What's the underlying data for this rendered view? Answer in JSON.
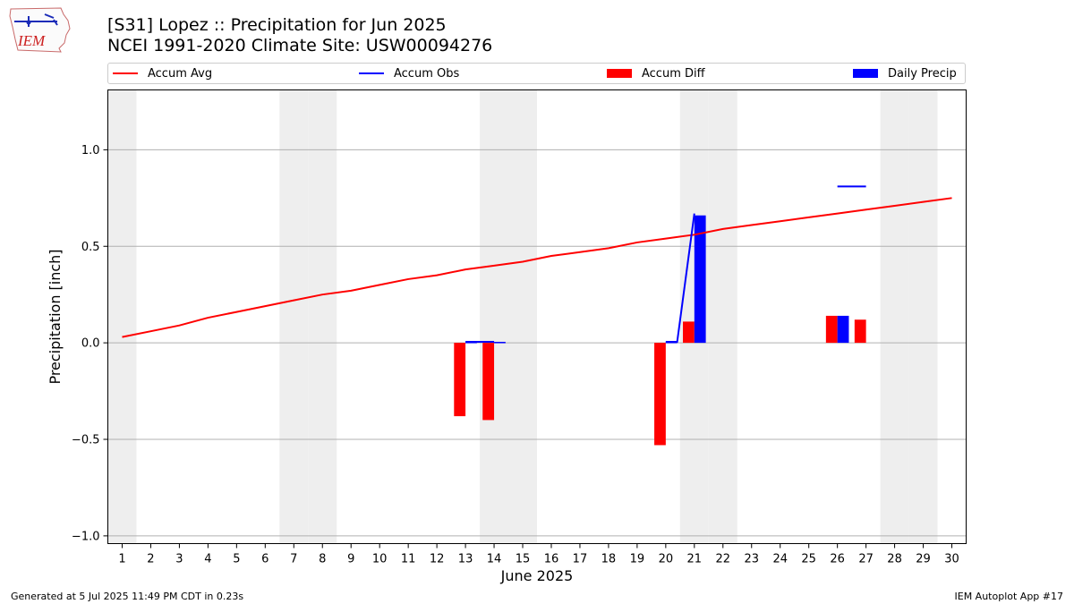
{
  "logo_text": "IEM",
  "title_line1": "[S31] Lopez :: Precipitation for Jun 2025",
  "title_line2": "NCEI 1991-2020 Climate Site: USW00094276",
  "legend": {
    "accum_avg": "Accum Avg",
    "accum_obs": "Accum Obs",
    "accum_diff": "Accum Diff",
    "daily_precip": "Daily Precip"
  },
  "colors": {
    "accum_avg": "#ff0000",
    "accum_obs": "#0000ff",
    "accum_diff": "#ff0000",
    "daily_precip": "#0000ff",
    "weekend_shade": "#eeeeee",
    "gridline": "#b0b0b0"
  },
  "footer_left": "Generated at 5 Jul 2025 11:49 PM CDT in 0.23s",
  "footer_right": "IEM Autoplot App #17",
  "chart_data": {
    "type": "bar",
    "xlabel": "June 2025",
    "ylabel": "Precipitation [inch]",
    "xlim": [
      0.5,
      30.5
    ],
    "ylim": [
      -1.04,
      1.31
    ],
    "yticks": [
      -1.0,
      -0.5,
      0.0,
      0.5,
      1.0
    ],
    "ytick_labels": [
      "−1.0",
      "−0.5",
      "0.0",
      "0.5",
      "1.0"
    ],
    "x": [
      1,
      2,
      3,
      4,
      5,
      6,
      7,
      8,
      9,
      10,
      11,
      12,
      13,
      14,
      15,
      16,
      17,
      18,
      19,
      20,
      21,
      22,
      23,
      24,
      25,
      26,
      27,
      28,
      29,
      30
    ],
    "grid": "horizontal",
    "weekend_days": [
      1,
      7,
      8,
      14,
      15,
      21,
      22,
      28,
      29
    ],
    "series": [
      {
        "name": "Accum Avg",
        "type": "line",
        "x": [
          1,
          2,
          3,
          4,
          5,
          6,
          7,
          8,
          9,
          10,
          11,
          12,
          13,
          14,
          15,
          16,
          17,
          18,
          19,
          20,
          21,
          22,
          23,
          24,
          25,
          26,
          27,
          28,
          29,
          30
        ],
        "values": [
          0.03,
          0.06,
          0.09,
          0.13,
          0.16,
          0.19,
          0.22,
          0.25,
          0.27,
          0.3,
          0.33,
          0.35,
          0.38,
          0.4,
          0.42,
          0.45,
          0.47,
          0.49,
          0.52,
          0.54,
          0.56,
          0.59,
          0.61,
          0.63,
          0.65,
          0.67,
          0.69,
          0.71,
          0.73,
          0.75
        ]
      },
      {
        "name": "Accum Obs",
        "type": "line",
        "segments": [
          [
            [
              13.0,
              0.005
            ],
            [
              14.0,
              0.005
            ]
          ],
          [
            [
              20.0,
              0.005
            ],
            [
              20.4,
              0.005
            ],
            [
              21.0,
              0.67
            ]
          ],
          [
            [
              26.0,
              0.81
            ],
            [
              27.0,
              0.81
            ]
          ]
        ]
      },
      {
        "name": "Accum Diff",
        "type": "bar",
        "x": [
          12.8,
          13.8,
          19.8,
          20.8,
          25.8,
          26.8
        ],
        "values": [
          -0.38,
          -0.4,
          -0.53,
          0.11,
          0.14,
          0.12
        ]
      },
      {
        "name": "Daily Precip",
        "type": "bar",
        "x": [
          13.2,
          14.2,
          20.2,
          21.2,
          26.2
        ],
        "values": [
          0.005,
          0.005,
          0.005,
          0.66,
          0.14
        ]
      }
    ]
  }
}
